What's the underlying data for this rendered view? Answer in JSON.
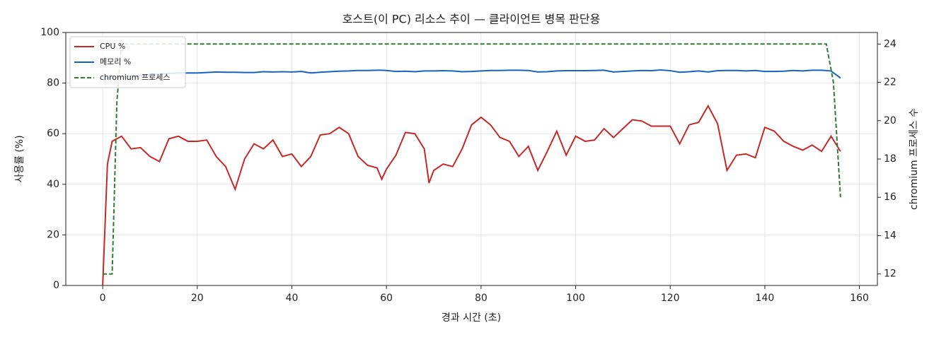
{
  "chart_data": {
    "type": "line",
    "title": "호스트(이 PC) 리소스 추이 — 클라이언트 병목 판단용",
    "x_label": "경과 시간 (초)",
    "y_label": "사용률 (%)",
    "y2_label": "chromium 프로세스 수",
    "xlim": [
      -7.8,
      163.8
    ],
    "xticks": [
      0,
      20,
      40,
      60,
      80,
      100,
      120,
      140,
      160
    ],
    "ylim": [
      0,
      100
    ],
    "yticks": [
      0,
      20,
      40,
      60,
      80,
      100
    ],
    "y2lim": [
      11.4,
      24.6
    ],
    "y2ticks": [
      12,
      14,
      16,
      18,
      20,
      22,
      24
    ],
    "grid": true,
    "legend": "upper-left",
    "series": [
      {
        "name": "CPU %",
        "color": "#c62828",
        "style": "solid",
        "x": [
          0,
          1,
          2,
          4,
          6,
          8,
          10,
          12,
          14,
          16,
          18,
          20,
          22,
          24,
          26,
          28,
          30,
          32,
          34,
          36,
          38,
          40,
          42,
          44,
          46,
          48,
          50,
          52,
          54,
          56,
          58,
          59,
          60,
          62,
          64,
          66,
          68,
          69,
          70,
          72,
          74,
          76,
          78,
          80,
          82,
          84,
          86,
          88,
          90,
          92,
          94,
          96,
          98,
          100,
          102,
          104,
          106,
          108,
          110,
          112,
          114,
          116,
          118,
          120,
          122,
          124,
          126,
          128,
          130,
          132,
          134,
          136,
          138,
          140,
          142,
          144,
          146,
          148,
          150,
          152,
          154,
          156
        ],
        "values": [
          0,
          48,
          57,
          59,
          54,
          54.5,
          51,
          49,
          58,
          59,
          57,
          57,
          57.5,
          51,
          47,
          38,
          50,
          56,
          54,
          57.5,
          51,
          52,
          47,
          51,
          59.5,
          60,
          62.5,
          60,
          51,
          47.5,
          46.5,
          42,
          46,
          51.5,
          60.5,
          60,
          54,
          40.5,
          45.5,
          48,
          47,
          54,
          63.5,
          66.5,
          63.5,
          58.5,
          57,
          51,
          55,
          45.5,
          53,
          61,
          51.5,
          59,
          57,
          57.5,
          62,
          58.5,
          62,
          65.5,
          65,
          63,
          63,
          63,
          56,
          63.5,
          64.5,
          71,
          64,
          45.5,
          51.5,
          52,
          50.5,
          62.5,
          61,
          57,
          55,
          53.5,
          55.5,
          53,
          59,
          53
        ]
      },
      {
        "name": "메모리 %",
        "color": "#1565c0",
        "style": "solid",
        "x": [
          0,
          1,
          2,
          4,
          6,
          8,
          10,
          12,
          14,
          16,
          18,
          20,
          22,
          24,
          26,
          28,
          30,
          32,
          34,
          36,
          38,
          40,
          42,
          44,
          46,
          48,
          50,
          52,
          54,
          56,
          58,
          59,
          60,
          62,
          64,
          66,
          68,
          69,
          70,
          72,
          74,
          76,
          78,
          80,
          82,
          84,
          86,
          88,
          90,
          92,
          94,
          96,
          98,
          100,
          102,
          104,
          106,
          108,
          110,
          112,
          114,
          116,
          118,
          120,
          122,
          124,
          126,
          128,
          130,
          132,
          134,
          136,
          138,
          140,
          142,
          144,
          146,
          148,
          150,
          152,
          154,
          156
        ],
        "values": [
          81.5,
          81.8,
          82,
          82.5,
          82.8,
          83,
          83.3,
          83.5,
          83.8,
          84,
          84,
          84,
          84.2,
          84.4,
          84.3,
          84.3,
          84.2,
          84.2,
          84.5,
          84.4,
          84.5,
          84.4,
          84.6,
          84,
          84.3,
          84.5,
          84.7,
          84.8,
          85,
          85,
          85.1,
          85.1,
          85,
          84.6,
          84.7,
          84.5,
          84.8,
          84.8,
          84.8,
          84.9,
          84.8,
          84.5,
          84.6,
          84.8,
          85,
          85,
          85.1,
          85.1,
          85,
          84.4,
          84.5,
          84.8,
          84.9,
          84.9,
          84.9,
          85,
          85.1,
          84.4,
          84.6,
          84.8,
          85,
          84.9,
          85.2,
          84.9,
          84.3,
          84.5,
          84.8,
          84.4,
          84.9,
          85,
          85,
          84.8,
          85,
          84.6,
          84.6,
          84.7,
          85,
          84.8,
          85.1,
          85.1,
          84.8,
          82
        ]
      },
      {
        "name": "chromium 프로세스",
        "color": "#2e7d32",
        "style": "dashed",
        "axis": "y2",
        "x": [
          0,
          2,
          3,
          4,
          153,
          154.5,
          156
        ],
        "values": [
          12,
          12,
          21,
          24,
          24,
          22,
          16
        ]
      }
    ]
  }
}
